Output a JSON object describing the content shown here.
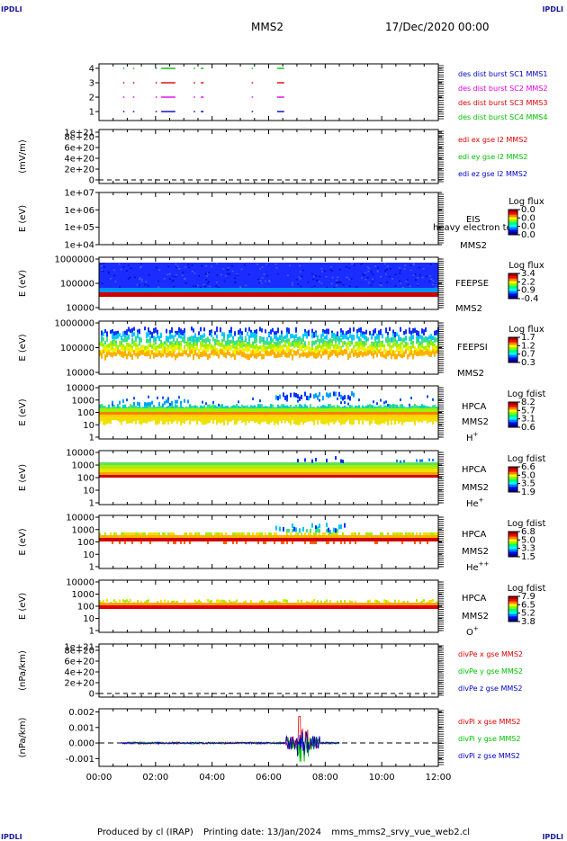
{
  "header": {
    "corner_tl": "IPDLI",
    "corner_tr": "IPDLI",
    "corner_bl": "IPDLI",
    "corner_br": "IPDLI",
    "spacecraft": "MMS2",
    "datetime": "17/Dec/2020 00:00"
  },
  "footer": {
    "produced": "Produced by cl (IRAP)",
    "printing": "Printing date: 13/Jan/2024",
    "file": "mms_mms2_srvy_vue_web2.cl"
  },
  "chart_data": {
    "type": "multi-panel",
    "x_ticks": [
      "00:00",
      "02:00",
      "04:00",
      "06:00",
      "08:00",
      "10:00",
      "12:00"
    ],
    "x_range_hours": [
      0,
      12
    ],
    "panels": [
      {
        "id": "burst",
        "type": "scatter",
        "ylabel": "",
        "yticks": [
          "1",
          "2",
          "3",
          "4"
        ],
        "ylim": [
          0.5,
          4.5
        ],
        "legend": [
          {
            "text": "des dist burst SC1 MMS1",
            "color": "#0000c8"
          },
          {
            "text": "des dist burst SC2 MMS2",
            "color": "#e000e0"
          },
          {
            "text": "des dist burst SC3 MMS3",
            "color": "#e00000"
          },
          {
            "text": "des dist burst SC4 MMS4",
            "color": "#00c000"
          }
        ],
        "series": [
          {
            "level": 4,
            "color": "#00c000",
            "intervals": [
              [
                0.85,
                0.9
              ],
              [
                1.2,
                1.25
              ],
              [
                2.0,
                2.05
              ],
              [
                2.2,
                2.7
              ],
              [
                3.35,
                3.4
              ],
              [
                3.6,
                3.7
              ],
              [
                5.4,
                5.45
              ],
              [
                6.3,
                6.55
              ]
            ]
          },
          {
            "level": 3,
            "color": "#e00000",
            "intervals": [
              [
                0.85,
                0.9
              ],
              [
                1.2,
                1.25
              ],
              [
                2.0,
                2.05
              ],
              [
                2.2,
                2.7
              ],
              [
                3.35,
                3.4
              ],
              [
                3.6,
                3.7
              ],
              [
                5.4,
                5.45
              ],
              [
                6.3,
                6.55
              ]
            ]
          },
          {
            "level": 2,
            "color": "#e000e0",
            "intervals": [
              [
                0.85,
                0.9
              ],
              [
                1.2,
                1.25
              ],
              [
                2.0,
                2.05
              ],
              [
                2.2,
                2.7
              ],
              [
                3.35,
                3.4
              ],
              [
                3.6,
                3.7
              ],
              [
                5.4,
                5.45
              ],
              [
                6.3,
                6.55
              ]
            ]
          },
          {
            "level": 1,
            "color": "#0000c8",
            "intervals": [
              [
                0.85,
                0.9
              ],
              [
                1.2,
                1.25
              ],
              [
                2.0,
                2.05
              ],
              [
                2.2,
                2.7
              ],
              [
                3.35,
                3.4
              ],
              [
                3.6,
                3.7
              ],
              [
                5.4,
                5.45
              ],
              [
                6.3,
                6.55
              ]
            ]
          }
        ]
      },
      {
        "id": "edi",
        "type": "line",
        "ylabel": "(mV/m)",
        "yticks": [
          "0",
          "2e+20",
          "4e+20",
          "6e+20",
          "8e+20",
          "1e+21"
        ],
        "legend": [
          {
            "text": "edi ex gse l2 MMS2",
            "color": "#e00000"
          },
          {
            "text": "edi ey gse l2 MMS2",
            "color": "#00c000"
          },
          {
            "text": "edi ez gse l2 MMS2",
            "color": "#0000c8"
          }
        ]
      },
      {
        "id": "eis",
        "type": "heatmap",
        "ylabel": "E (eV)",
        "yticks": [
          "1e+04",
          "1e+05",
          "1e+06",
          "1e+07"
        ],
        "name": "EIS",
        "overlay": "heavy electron tof",
        "craft": "MMS2",
        "cb_title": "Log flux",
        "cb_ticks": [
          "0.0",
          "0.0",
          "0.0",
          "0.0"
        ]
      },
      {
        "id": "feepse",
        "type": "heatmap",
        "ylabel": "E (eV)",
        "yticks": [
          "1000000",
          "100000",
          "10000"
        ],
        "name": "FEEPSE",
        "craft": "MMS2",
        "cb_title": "Log flux",
        "cb_ticks": [
          "3.4",
          "2.2",
          "0.9",
          "-0.4"
        ]
      },
      {
        "id": "feepsi",
        "type": "heatmap",
        "ylabel": "E (eV)",
        "yticks": [
          "1000000",
          "100000",
          "10000"
        ],
        "name": "FEEPSI",
        "craft": "MMS2",
        "cb_title": "Log flux",
        "cb_ticks": [
          "1.7",
          "1.2",
          "0.7",
          "0.3"
        ]
      },
      {
        "id": "hpca_h",
        "type": "heatmap",
        "ylabel": "E (eV)",
        "yticks": [
          "10000",
          "1000",
          "100",
          "10",
          "1"
        ],
        "name": "HPCA",
        "craft": "MMS2",
        "species": "H",
        "charge": "+",
        "cb_title": "Log fdist",
        "cb_ticks": [
          "8.2",
          "5.7",
          "3.1",
          "0.6"
        ]
      },
      {
        "id": "hpca_he1",
        "type": "heatmap",
        "ylabel": "E (eV)",
        "yticks": [
          "10000",
          "1000",
          "100",
          "10",
          "1"
        ],
        "name": "HPCA",
        "craft": "MMS2",
        "species": "He",
        "charge": "+",
        "cb_title": "Log fdist",
        "cb_ticks": [
          "6.6",
          "5.0",
          "3.5",
          "1.9"
        ]
      },
      {
        "id": "hpca_he2",
        "type": "heatmap",
        "ylabel": "E (eV)",
        "yticks": [
          "10000",
          "1000",
          "100",
          "10",
          "1"
        ],
        "name": "HPCA",
        "craft": "MMS2",
        "species": "He",
        "charge": "++",
        "cb_title": "Log fdist",
        "cb_ticks": [
          "6.8",
          "5.0",
          "3.3",
          "1.5"
        ]
      },
      {
        "id": "hpca_o",
        "type": "heatmap",
        "ylabel": "E (eV)",
        "yticks": [
          "10000",
          "1000",
          "100",
          "10",
          "1"
        ],
        "name": "HPCA",
        "craft": "MMS2",
        "species": "O",
        "charge": "+",
        "cb_title": "Log fdist",
        "cb_ticks": [
          "7.9",
          "6.5",
          "5.2",
          "3.8"
        ]
      },
      {
        "id": "divpe",
        "type": "line",
        "ylabel": "(nPa/km)",
        "yticks": [
          "0",
          "2e+20",
          "4e+20",
          "6e+20",
          "8e+20",
          "1e+21"
        ],
        "legend": [
          {
            "text": "divPe x gse MMS2",
            "color": "#e00000"
          },
          {
            "text": "divPe y gse MMS2",
            "color": "#00c000"
          },
          {
            "text": "divPe z gse MMS2",
            "color": "#0000c8"
          }
        ]
      },
      {
        "id": "divpi",
        "type": "line",
        "ylabel": "(nPa/km)",
        "yticks": [
          "0.002",
          "0.001",
          "0.000",
          "-0.001"
        ],
        "ylim": [
          -0.0015,
          0.0022
        ],
        "data_x_range_hours": [
          0.8,
          8.5
        ],
        "legend": [
          {
            "text": "divPi x gse MMS2",
            "color": "#e00000"
          },
          {
            "text": "divPi y gse MMS2",
            "color": "#00c000"
          },
          {
            "text": "divPi z gse MMS2",
            "color": "#0000c8"
          }
        ]
      }
    ]
  }
}
